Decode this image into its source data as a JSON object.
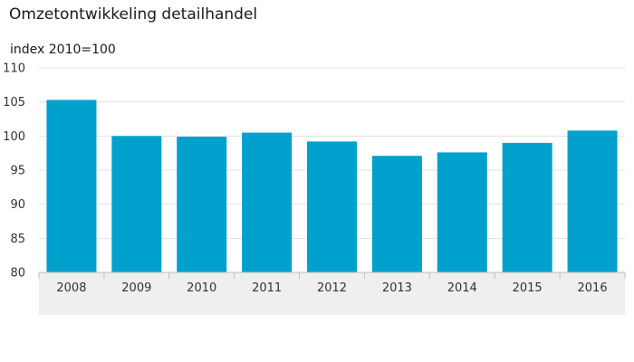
{
  "chart_data": {
    "type": "bar",
    "title": "Omzetontwikkeling detailhandel",
    "ylabel": "index 2010=100",
    "xlabel": "",
    "categories": [
      "2008",
      "2009",
      "2010",
      "2011",
      "2012",
      "2013",
      "2014",
      "2015",
      "2016"
    ],
    "values": [
      105.3,
      100.0,
      99.9,
      100.5,
      99.2,
      97.1,
      97.6,
      99.0,
      100.8
    ],
    "ylim": [
      80,
      110
    ],
    "yticks": [
      80,
      85,
      90,
      95,
      100,
      105,
      110
    ],
    "grid": true,
    "legend": "none",
    "bar_color": "#00a1cd",
    "grid_color": "#e1e1e1",
    "axis_band_color": "#efefef"
  }
}
